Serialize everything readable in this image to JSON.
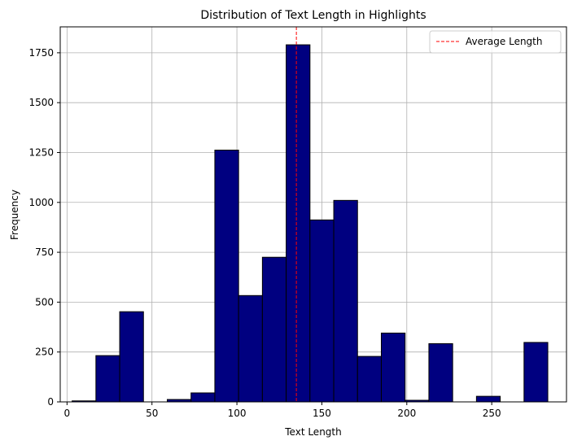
{
  "chart_data": {
    "type": "histogram",
    "title": "Distribution of Text Length in Highlights",
    "xlabel": "Text Length",
    "ylabel": "Frequency",
    "xlim": [
      -4,
      294
    ],
    "ylim": [
      0,
      1880
    ],
    "x_ticks": [
      0,
      50,
      100,
      150,
      200,
      250
    ],
    "y_ticks": [
      0,
      250,
      500,
      750,
      1000,
      1250,
      1500,
      1750
    ],
    "grid": true,
    "legend_position": "top-right",
    "bar_color": "#000080",
    "bar_edge_color": "#000000",
    "bins": [
      {
        "x0": 3,
        "x1": 17,
        "value": 5
      },
      {
        "x0": 17,
        "x1": 31,
        "value": 232
      },
      {
        "x0": 31,
        "x1": 45,
        "value": 452
      },
      {
        "x0": 45,
        "x1": 59,
        "value": 0
      },
      {
        "x0": 59,
        "x1": 73,
        "value": 12
      },
      {
        "x0": 73,
        "x1": 87,
        "value": 45
      },
      {
        "x0": 87,
        "x1": 101,
        "value": 1262
      },
      {
        "x0": 101,
        "x1": 115,
        "value": 533
      },
      {
        "x0": 115,
        "x1": 129,
        "value": 725
      },
      {
        "x0": 129,
        "x1": 143,
        "value": 1790
      },
      {
        "x0": 143,
        "x1": 157,
        "value": 912
      },
      {
        "x0": 157,
        "x1": 171,
        "value": 1010
      },
      {
        "x0": 171,
        "x1": 185,
        "value": 228
      },
      {
        "x0": 185,
        "x1": 199,
        "value": 345
      },
      {
        "x0": 199,
        "x1": 213,
        "value": 8
      },
      {
        "x0": 213,
        "x1": 227,
        "value": 292
      },
      {
        "x0": 227,
        "x1": 241,
        "value": 0
      },
      {
        "x0": 241,
        "x1": 255,
        "value": 28
      },
      {
        "x0": 255,
        "x1": 269,
        "value": 0
      },
      {
        "x0": 269,
        "x1": 283,
        "value": 298
      }
    ],
    "average_line": {
      "x": 135,
      "label": "Average Length",
      "color": "#ff0000",
      "style": "dashed"
    }
  }
}
